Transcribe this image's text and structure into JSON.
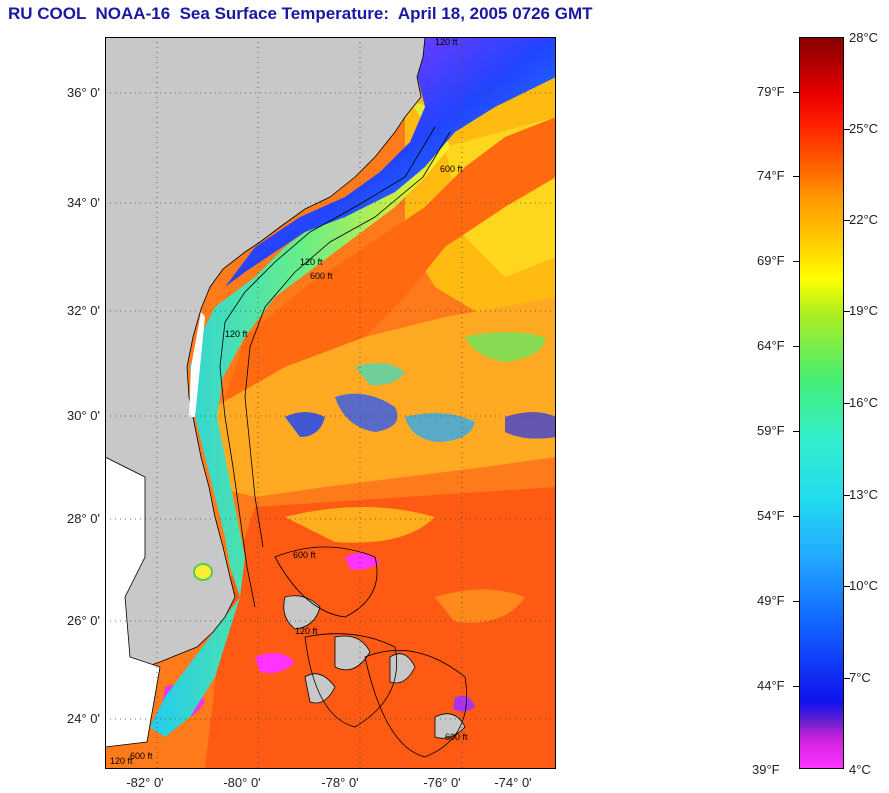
{
  "title": "RU COOL  NOAA-16  Sea Surface Temperature:  April 18, 2005 0726 GMT",
  "map": {
    "latitude_labels": [
      "36° 0'",
      "34° 0'",
      "32° 0'",
      "30° 0'",
      "28° 0'",
      "26° 0'",
      "24° 0'"
    ],
    "longitude_labels": [
      "-82° 0'",
      "-80° 0'",
      "-78° 0'",
      "-76° 0'",
      "-74° 0'"
    ],
    "land_color": "#c8c8c8",
    "ocean_base_color": "#ff7a1a",
    "contour_labels": [
      "120 ft",
      "600 ft",
      "120 ft",
      "600 ft",
      "120 ft",
      "600 ft",
      "120 ft",
      "600 ft",
      "120 ft",
      "600 ft"
    ]
  },
  "colorbar": {
    "fahrenheit_labels": [
      "79°F",
      "74°F",
      "69°F",
      "64°F",
      "59°F",
      "54°F",
      "49°F",
      "44°F",
      "39°F"
    ],
    "celsius_labels": [
      "28°C",
      "25°C",
      "22°C",
      "19°C",
      "16°C",
      "13°C",
      "10°C",
      "7°C",
      "4°C"
    ]
  }
}
